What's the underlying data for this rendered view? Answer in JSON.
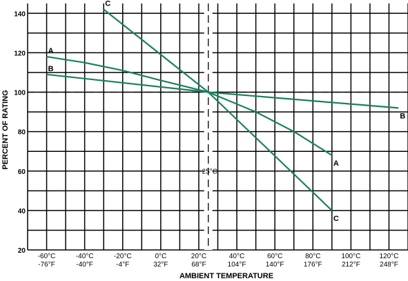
{
  "chart_data": {
    "type": "line",
    "xlabel": "AMBIENT TEMPERATURE",
    "ylabel": "PERCENT OF RATING",
    "xlim": [
      -70,
      130
    ],
    "ylim": [
      20,
      145
    ],
    "yticks": [
      20,
      40,
      60,
      80,
      100,
      120,
      140
    ],
    "xticks": [
      {
        "x": -60,
        "top": "-60°C",
        "bottom": "-76°F"
      },
      {
        "x": -40,
        "top": "-40°C",
        "bottom": "-40°F"
      },
      {
        "x": -20,
        "top": "-20°C",
        "bottom": "-4°F"
      },
      {
        "x": 0,
        "top": "0°C",
        "bottom": "32°F"
      },
      {
        "x": 20,
        "top": "20°C",
        "bottom": "68°F"
      },
      {
        "x": 40,
        "top": "40°C",
        "bottom": "104°F"
      },
      {
        "x": 60,
        "top": "60°C",
        "bottom": "140°F"
      },
      {
        "x": 80,
        "top": "80°C",
        "bottom": "176°F"
      },
      {
        "x": 100,
        "top": "100°C",
        "bottom": "212°F"
      },
      {
        "x": 120,
        "top": "120°C",
        "bottom": "248°F"
      }
    ],
    "grid": true,
    "reference_lines": {
      "vertical": {
        "x": 25,
        "label": "25°C"
      },
      "horizontal": {
        "y": 100
      }
    },
    "series": [
      {
        "name": "A",
        "color": "#1a8060",
        "x": [
          -60,
          -40,
          -20,
          0,
          25,
          50,
          70,
          90
        ],
        "y": [
          118,
          115,
          111,
          106,
          100,
          90,
          80,
          68
        ],
        "end_label_at": "end"
      },
      {
        "name": "B",
        "color": "#1a8060",
        "x": [
          -60,
          25,
          125
        ],
        "y": [
          109,
          100,
          92
        ],
        "end_label_at": "end"
      },
      {
        "name": "C",
        "color": "#1a8060",
        "x": [
          -30,
          25,
          90
        ],
        "y": [
          142,
          100,
          40
        ],
        "end_label_at": "both"
      }
    ]
  }
}
